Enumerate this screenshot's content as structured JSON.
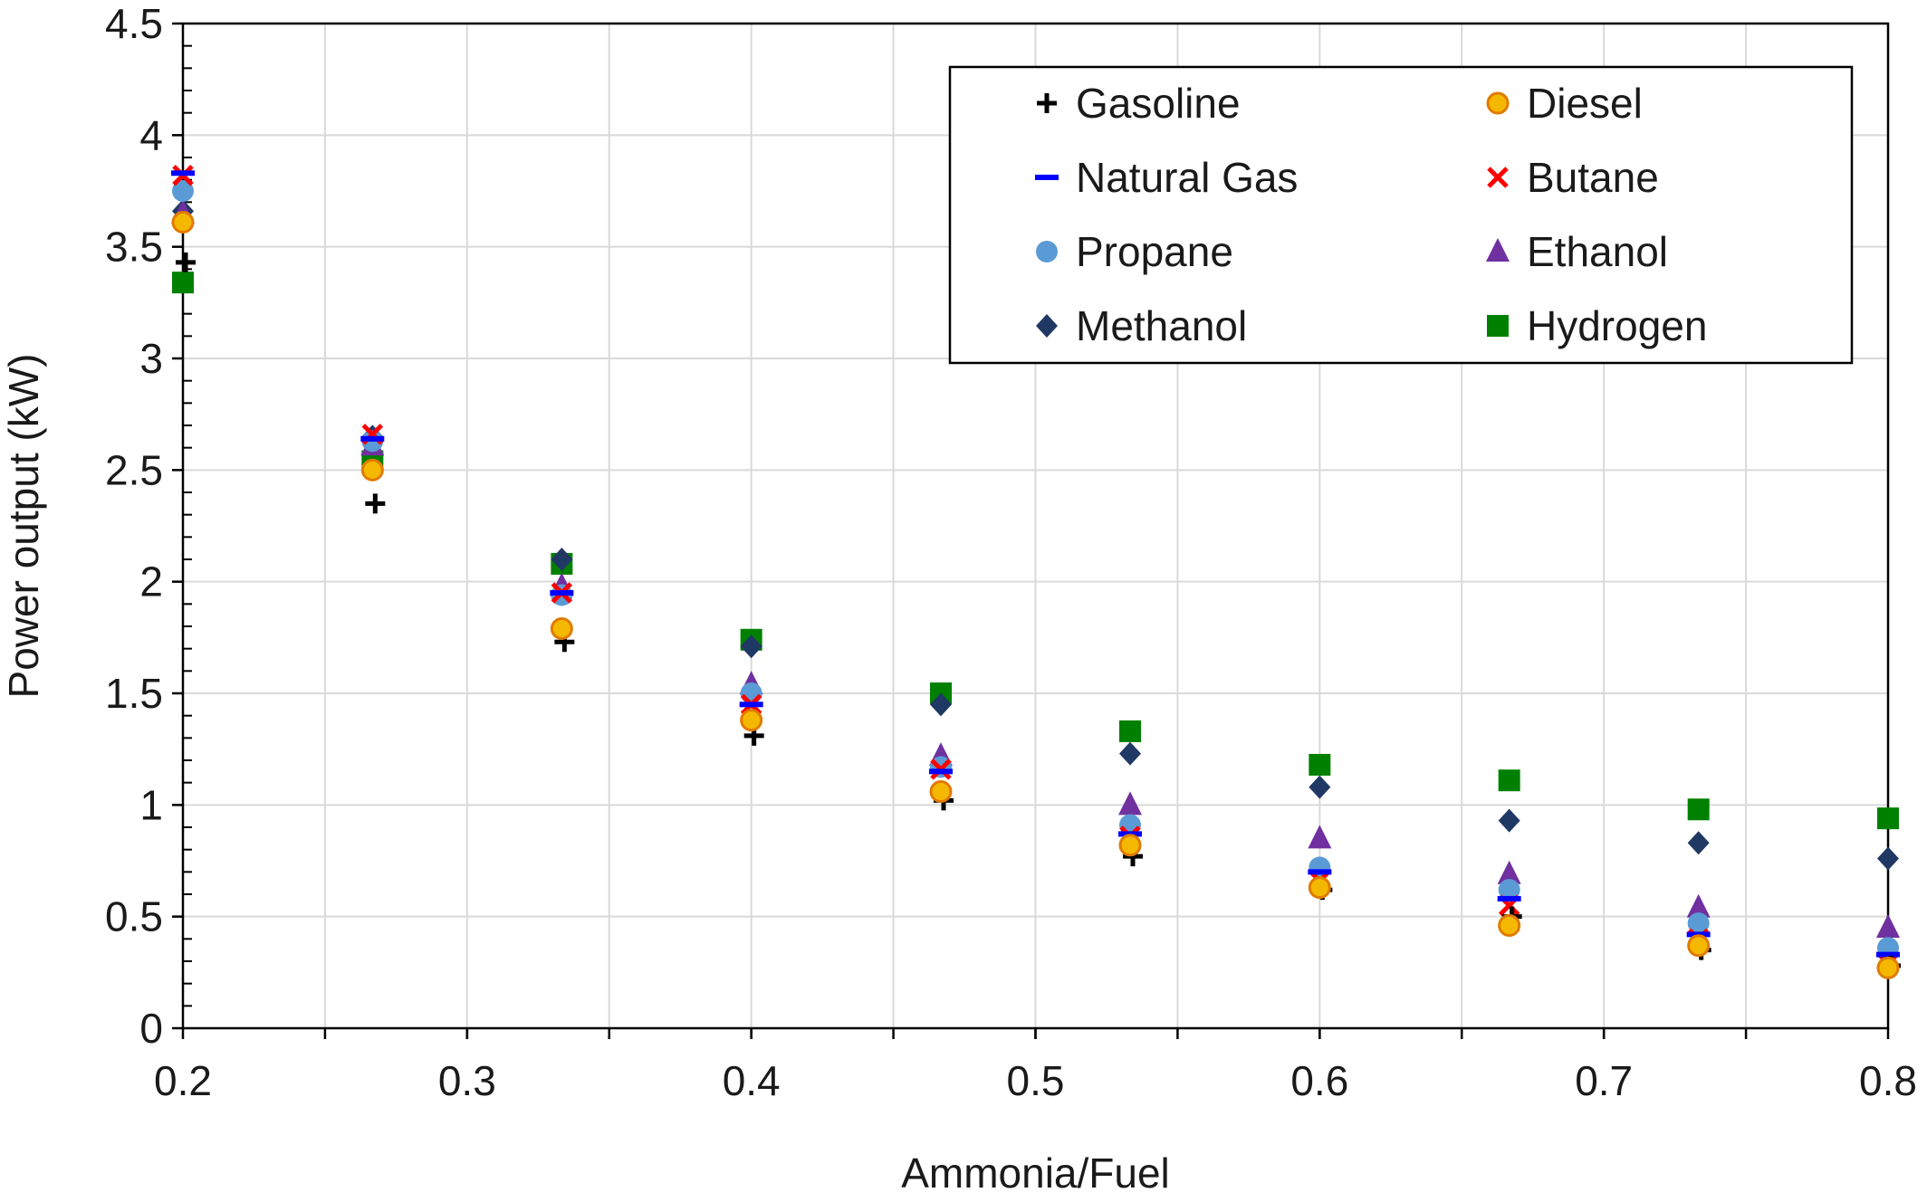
{
  "chart_data": {
    "type": "scatter",
    "title": "",
    "xlabel": "Ammonia/Fuel",
    "ylabel": "Power output (kW)",
    "xlim": [
      0.2,
      0.8
    ],
    "ylim": [
      0,
      4.5
    ],
    "xticks": [
      "0.2",
      "0.3",
      "0.4",
      "0.5",
      "0.6",
      "0.7",
      "0.8"
    ],
    "yticks": [
      "0",
      "0.5",
      "1",
      "1.5",
      "2",
      "2.5",
      "3",
      "3.5",
      "4",
      "4.5"
    ],
    "grid": true,
    "legend_position": "top-right",
    "x": [
      0.2,
      0.2667,
      0.3333,
      0.4,
      0.4667,
      0.5333,
      0.6,
      0.6667,
      0.7333,
      0.8
    ],
    "series": [
      {
        "name": "Gasoline",
        "marker": "plus",
        "color": "#000000",
        "values": [
          3.43,
          2.35,
          1.73,
          1.31,
          1.02,
          0.77,
          0.62,
          0.5,
          0.35,
          0.28
        ]
      },
      {
        "name": "Diesel",
        "marker": "circle-outlined",
        "color": "#f5b800",
        "edge": "#e07b00",
        "values": [
          3.61,
          2.5,
          1.79,
          1.38,
          1.06,
          0.82,
          0.63,
          0.46,
          0.37,
          0.27
        ]
      },
      {
        "name": "Natural Gas",
        "marker": "dash",
        "color": "#0000ff",
        "values": [
          3.83,
          2.64,
          1.95,
          1.45,
          1.15,
          0.87,
          0.7,
          0.58,
          0.42,
          0.33
        ]
      },
      {
        "name": "Butane",
        "marker": "x",
        "color": "#ff0000",
        "values": [
          3.82,
          2.66,
          1.95,
          1.45,
          1.16,
          0.86,
          0.66,
          0.55,
          0.4,
          0.29
        ]
      },
      {
        "name": "Propane",
        "marker": "circle",
        "color": "#5b9bd5",
        "values": [
          3.75,
          2.63,
          1.94,
          1.5,
          1.17,
          0.91,
          0.72,
          0.62,
          0.47,
          0.36
        ]
      },
      {
        "name": "Ethanol",
        "marker": "triangle",
        "color": "#7030a0",
        "values": [
          3.65,
          2.61,
          1.98,
          1.54,
          1.22,
          1.0,
          0.85,
          0.69,
          0.54,
          0.45
        ]
      },
      {
        "name": "Methanol",
        "marker": "diamond",
        "color": "#203864",
        "values": [
          3.66,
          2.65,
          2.1,
          1.71,
          1.45,
          1.23,
          1.08,
          0.93,
          0.83,
          0.76
        ]
      },
      {
        "name": "Hydrogen",
        "marker": "square",
        "color": "#008000",
        "values": [
          3.34,
          2.54,
          2.08,
          1.74,
          1.5,
          1.33,
          1.18,
          1.11,
          0.98,
          0.94
        ]
      }
    ]
  }
}
